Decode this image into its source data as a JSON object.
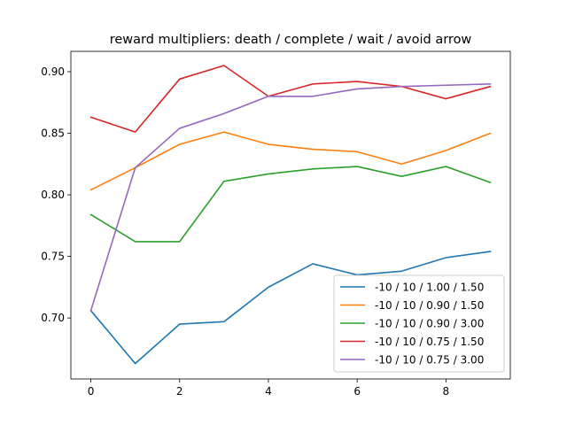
{
  "chart_data": {
    "type": "line",
    "title": "reward multipliers: death / complete / wait / avoid arrow",
    "xlabel": "",
    "ylabel": "",
    "x": [
      0,
      1,
      2,
      3,
      4,
      5,
      6,
      7,
      8,
      9
    ],
    "xlim": [
      -0.45,
      9.45
    ],
    "ylim": [
      0.6505,
      0.9165
    ],
    "xticks": [
      0,
      2,
      4,
      6,
      8
    ],
    "xtick_labels": [
      "0",
      "2",
      "4",
      "6",
      "8"
    ],
    "yticks": [
      0.7,
      0.75,
      0.8,
      0.85,
      0.9
    ],
    "ytick_labels": [
      "0.70",
      "0.75",
      "0.80",
      "0.85",
      "0.90"
    ],
    "grid": false,
    "legend_position": "lower-right",
    "series": [
      {
        "name": "-10 / 10 / 1.00 / 1.50",
        "color": "#1f77b4",
        "values": [
          0.706,
          0.663,
          0.695,
          0.697,
          0.725,
          0.744,
          0.735,
          0.738,
          0.749,
          0.754
        ]
      },
      {
        "name": "-10 / 10 / 0.90 / 1.50",
        "color": "#ff7f0e",
        "values": [
          0.804,
          0.822,
          0.841,
          0.851,
          0.841,
          0.837,
          0.835,
          0.825,
          0.836,
          0.85
        ]
      },
      {
        "name": "-10 / 10 / 0.90 / 3.00",
        "color": "#2ca02c",
        "values": [
          0.784,
          0.762,
          0.762,
          0.811,
          0.817,
          0.821,
          0.823,
          0.815,
          0.823,
          0.81
        ]
      },
      {
        "name": "-10 / 10 / 0.75 / 1.50",
        "color": "#d62728",
        "values": [
          0.863,
          0.851,
          0.894,
          0.905,
          0.88,
          0.89,
          0.892,
          0.888,
          0.878,
          0.888
        ]
      },
      {
        "name": "-10 / 10 / 0.75 / 3.00",
        "color": "#9467bd",
        "values": [
          0.706,
          0.822,
          0.854,
          0.866,
          0.88,
          0.88,
          0.886,
          0.888,
          0.889,
          0.89
        ]
      }
    ]
  }
}
